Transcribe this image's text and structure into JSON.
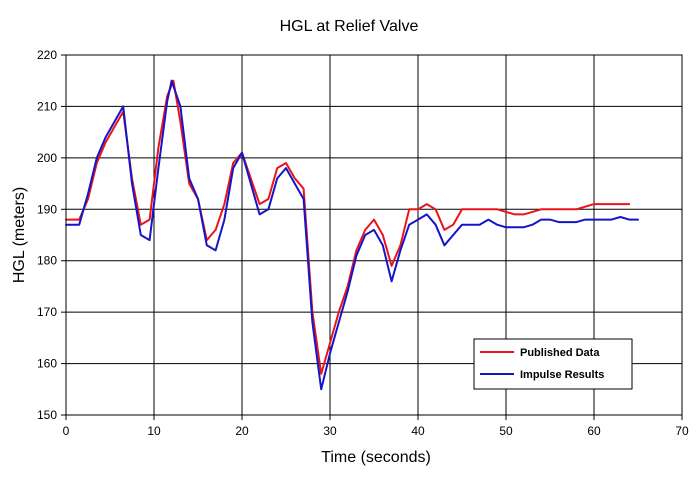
{
  "chart_data": {
    "type": "line",
    "title": "HGL at Relief Valve",
    "xlabel": "Time (seconds)",
    "ylabel": "HGL (meters)",
    "xlim": [
      0,
      70
    ],
    "ylim": [
      150,
      220
    ],
    "x_ticks": [
      0,
      10,
      20,
      30,
      40,
      50,
      60,
      70
    ],
    "y_ticks": [
      150,
      160,
      170,
      180,
      190,
      200,
      210,
      220
    ],
    "grid": true,
    "legend_position": "bottom-right",
    "series": [
      {
        "name": "Published Data",
        "color": "#e8141c",
        "x": [
          0,
          1.5,
          2.5,
          3.5,
          4.5,
          5.5,
          6.5,
          7.5,
          8.5,
          9.5,
          10.5,
          11.5,
          12.2,
          13,
          14,
          15,
          16,
          17,
          18,
          19,
          20,
          21,
          22,
          23,
          24,
          25,
          26,
          27,
          28,
          29,
          30,
          31,
          32,
          33,
          34,
          35,
          36,
          37,
          38,
          39,
          40,
          41,
          42,
          43,
          44,
          45,
          46,
          47,
          48,
          49,
          50,
          51,
          52,
          53,
          54,
          55,
          56,
          57,
          58,
          59,
          60,
          61,
          62,
          63,
          64
        ],
        "y": [
          188,
          188,
          192,
          199,
          203,
          206,
          209,
          196,
          187,
          188,
          202,
          212,
          215,
          207,
          195,
          192,
          184,
          186,
          191,
          199,
          201,
          196,
          191,
          192,
          198,
          199,
          196,
          194,
          170,
          158,
          164,
          170,
          175,
          182,
          186,
          188,
          185,
          179,
          183,
          190,
          190,
          191,
          190,
          186,
          187,
          190,
          190,
          190,
          190,
          190,
          189.5,
          189,
          189,
          189.5,
          190,
          190,
          190,
          190,
          190,
          190.5,
          191,
          191,
          191,
          191,
          191
        ]
      },
      {
        "name": "Impulse Results",
        "color": "#1515c8",
        "x": [
          0,
          1.5,
          2.5,
          3.5,
          4.5,
          5.5,
          6.5,
          7.5,
          8.5,
          9.5,
          10.5,
          11.5,
          12,
          13,
          14,
          15,
          16,
          17,
          18,
          19,
          20,
          21,
          22,
          23,
          24,
          25,
          26,
          27,
          28,
          29,
          30,
          31,
          32,
          33,
          34,
          35,
          36,
          37,
          38,
          39,
          40,
          41,
          42,
          43,
          44,
          45,
          46,
          47,
          48,
          49,
          50,
          51,
          52,
          53,
          54,
          55,
          56,
          57,
          58,
          59,
          60,
          61,
          62,
          63,
          64,
          65
        ],
        "y": [
          187,
          187,
          193,
          200,
          204,
          207,
          210,
          195,
          185,
          184,
          198,
          211,
          215,
          210,
          196,
          192,
          183,
          182,
          188,
          198,
          201,
          195,
          189,
          190,
          196,
          198,
          195,
          192,
          168,
          155,
          162,
          168,
          174,
          181,
          185,
          186,
          183,
          176,
          182,
          187,
          188,
          189,
          187,
          183,
          185,
          187,
          187,
          187,
          188,
          187,
          186.5,
          186.5,
          186.5,
          187,
          188,
          188,
          187.5,
          187.5,
          187.5,
          188,
          188,
          188,
          188,
          188.5,
          188,
          188
        ]
      }
    ]
  }
}
